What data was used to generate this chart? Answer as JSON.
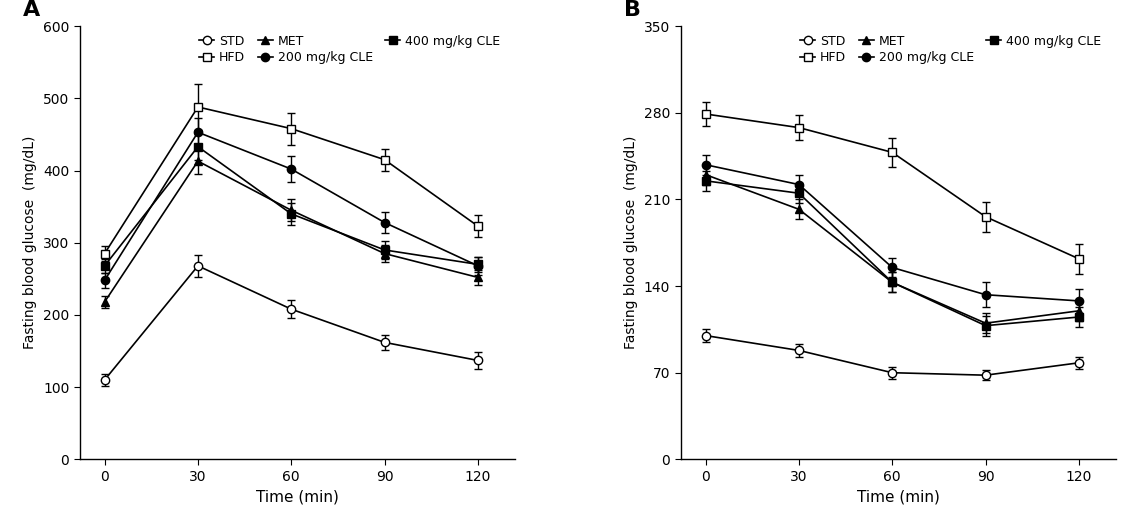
{
  "timepoints": [
    0,
    30,
    60,
    90,
    120
  ],
  "panel_A": {
    "title": "A",
    "ylabel": "Fasting blood glucose  (mg/dL)",
    "xlabel": "Time (min)",
    "ylim": [
      0,
      600
    ],
    "yticks": [
      0,
      100,
      200,
      300,
      400,
      500,
      600
    ],
    "series": {
      "STD": {
        "y": [
          110,
          268,
          208,
          162,
          137
        ],
        "yerr": [
          8,
          15,
          12,
          10,
          12
        ]
      },
      "HFD": {
        "y": [
          285,
          488,
          458,
          415,
          323
        ],
        "yerr": [
          10,
          32,
          22,
          15,
          15
        ]
      },
      "MET": {
        "y": [
          218,
          413,
          345,
          285,
          252
        ],
        "yerr": [
          8,
          18,
          15,
          12,
          10
        ]
      },
      "200 mg/kg CLE": {
        "y": [
          248,
          453,
          402,
          328,
          268
        ],
        "yerr": [
          10,
          20,
          18,
          15,
          12
        ]
      },
      "400 mg/kg CLE": {
        "y": [
          268,
          433,
          340,
          290,
          270
        ],
        "yerr": [
          10,
          18,
          15,
          12,
          10
        ]
      }
    }
  },
  "panel_B": {
    "title": "B",
    "ylabel": "Fasting blood glucose  (mg/dL)",
    "xlabel": "Time (min)",
    "ylim": [
      0,
      350
    ],
    "yticks": [
      0,
      70,
      140,
      210,
      280,
      350
    ],
    "series": {
      "STD": {
        "y": [
          100,
          88,
          70,
          68,
          78
        ],
        "yerr": [
          5,
          5,
          5,
          4,
          5
        ]
      },
      "HFD": {
        "y": [
          279,
          268,
          248,
          196,
          162
        ],
        "yerr": [
          10,
          10,
          12,
          12,
          12
        ]
      },
      "MET": {
        "y": [
          230,
          202,
          143,
          110,
          120
        ],
        "yerr": [
          8,
          8,
          8,
          8,
          8
        ]
      },
      "200 mg/kg CLE": {
        "y": [
          238,
          222,
          155,
          133,
          128
        ],
        "yerr": [
          8,
          8,
          8,
          10,
          10
        ]
      },
      "400 mg/kg CLE": {
        "y": [
          225,
          215,
          143,
          108,
          115
        ],
        "yerr": [
          8,
          8,
          8,
          8,
          8
        ]
      }
    }
  },
  "legend_order": [
    "STD",
    "HFD",
    "MET",
    "200 mg/kg CLE",
    "400 mg/kg CLE"
  ],
  "marker_styles": {
    "STD": {
      "marker": "o",
      "mfc": "white"
    },
    "HFD": {
      "marker": "s",
      "mfc": "white"
    },
    "MET": {
      "marker": "^",
      "mfc": "black"
    },
    "200 mg/kg CLE": {
      "marker": "o",
      "mfc": "black"
    },
    "400 mg/kg CLE": {
      "marker": "s",
      "mfc": "black"
    }
  }
}
